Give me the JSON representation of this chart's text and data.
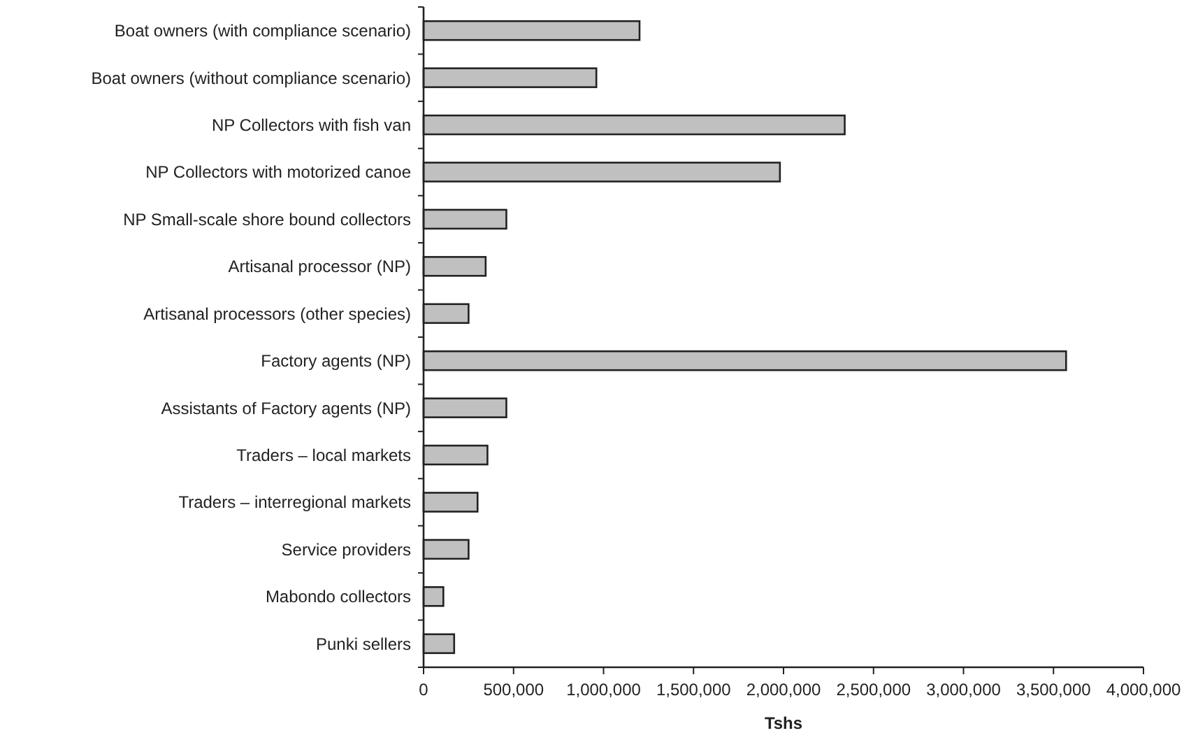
{
  "chart_data": {
    "type": "bar",
    "orientation": "horizontal",
    "xlabel": "Tshs",
    "categories": [
      "Boat owners (with compliance scenario)",
      "Boat owners (without compliance scenario)",
      "NP Collectors with fish van",
      "NP Collectors with motorized canoe",
      "NP Small-scale shore bound collectors",
      "Artisanal processor (NP)",
      "Artisanal processors (other species)",
      "Factory agents (NP)",
      "Assistants of Factory agents (NP)",
      "Traders – local markets",
      "Traders – interregional markets",
      "Service providers",
      "Mabondo collectors",
      "Punki sellers"
    ],
    "series": [
      {
        "color": "#c0c0c0",
        "values": [
          1200000,
          960000,
          2340000,
          1980000,
          460000,
          345000,
          250000,
          3570000,
          460000,
          355000,
          300000,
          250000,
          110000,
          170000
        ]
      }
    ],
    "xlim": [
      0,
      4000000
    ],
    "xticks": [
      {
        "value": 0,
        "label": "0"
      },
      {
        "value": 500000,
        "label": "500,000"
      },
      {
        "value": 1000000,
        "label": "1,000,000"
      },
      {
        "value": 1500000,
        "label": "1,500,000"
      },
      {
        "value": 2000000,
        "label": "2,000,000"
      },
      {
        "value": 2500000,
        "label": "2,500,000"
      },
      {
        "value": 3000000,
        "label": "3,000,000"
      },
      {
        "value": 3500000,
        "label": "3,500,000"
      },
      {
        "value": 4000000,
        "label": "4,000,000"
      }
    ],
    "grid": false
  }
}
